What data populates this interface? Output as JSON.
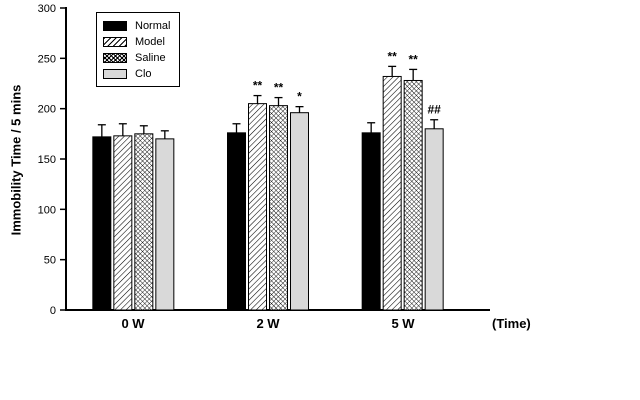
{
  "chart_data": {
    "type": "bar",
    "title": "",
    "ylabel": "Immobility Time / 5 mins",
    "xlabel": "(Time)",
    "categories": [
      "0 W",
      "2 W",
      "5 W"
    ],
    "ylim": [
      0,
      300
    ],
    "yticks": [
      0,
      50,
      100,
      150,
      200,
      250,
      300
    ],
    "grid": false,
    "legend_position": "top-left-inside",
    "colors": {
      "bar_black": "#000000",
      "bar_gray": "#d9d9d9",
      "axis": "#000000",
      "background": "#ffffff"
    },
    "series": [
      {
        "name": "Normal",
        "pattern": "solid-black",
        "values": [
          172,
          176,
          176
        ],
        "errors": [
          12,
          9,
          10
        ],
        "annotations": [
          "",
          "",
          ""
        ]
      },
      {
        "name": "Model",
        "pattern": "diagonal-hatch",
        "values": [
          173,
          205,
          232
        ],
        "errors": [
          12,
          8,
          10
        ],
        "annotations": [
          "",
          "**",
          "**"
        ]
      },
      {
        "name": "Saline",
        "pattern": "cross-hatch",
        "values": [
          175,
          203,
          228
        ],
        "errors": [
          8,
          8,
          11
        ],
        "annotations": [
          "",
          "**",
          "**"
        ]
      },
      {
        "name": "Clo",
        "pattern": "solid-gray",
        "values": [
          170,
          196,
          180
        ],
        "errors": [
          8,
          6,
          9
        ],
        "annotations": [
          "",
          "*",
          "##"
        ]
      }
    ]
  }
}
